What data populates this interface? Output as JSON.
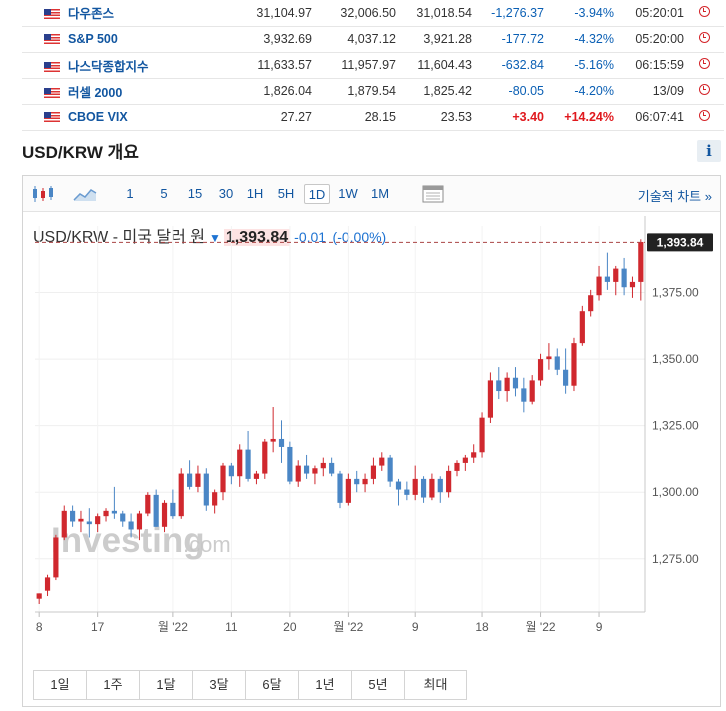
{
  "indices": [
    {
      "name": "다우존스",
      "last": "31,104.97",
      "high": "32,006.50",
      "low": "31,018.54",
      "change": "-1,276.37",
      "pct": "-3.94%",
      "time": "05:20:01",
      "dir": "neg"
    },
    {
      "name": "S&P 500",
      "last": "3,932.69",
      "high": "4,037.12",
      "low": "3,921.28",
      "change": "-177.72",
      "pct": "-4.32%",
      "time": "05:20:00",
      "dir": "neg"
    },
    {
      "name": "나스닥종합지수",
      "last": "11,633.57",
      "high": "11,957.97",
      "low": "11,604.43",
      "change": "-632.84",
      "pct": "-5.16%",
      "time": "06:15:59",
      "dir": "neg"
    },
    {
      "name": "러셀 2000",
      "last": "1,826.04",
      "high": "1,879.54",
      "low": "1,825.42",
      "change": "-80.05",
      "pct": "-4.20%",
      "time": "13/09",
      "dir": "neg"
    },
    {
      "name": "CBOE VIX",
      "last": "27.27",
      "high": "28.15",
      "low": "23.53",
      "change": "+3.40",
      "pct": "+14.24%",
      "time": "06:07:41",
      "dir": "pos"
    }
  ],
  "section": {
    "title": "USD/KRW 개요",
    "info_label": "i"
  },
  "toolbar": {
    "timeframes": [
      "1",
      "5",
      "15",
      "30",
      "1H",
      "5H",
      "1D",
      "1W",
      "1M"
    ],
    "active_timeframe": "1D",
    "tech_link": "기술적 차트 »",
    "icons": [
      "candlestick-chart-icon",
      "area-chart-icon",
      "calendar-grid-icon"
    ]
  },
  "chart_header": {
    "pair": "USD/KRW",
    "description": "- 미국 달러 원",
    "price": "1,393.84",
    "change": "-0.01",
    "change_pct": "(-0.00%)"
  },
  "watermark": {
    "brand": "Investing",
    "suffix": ".com"
  },
  "chart_data": {
    "type": "candlestick",
    "y_ticks": [
      1275,
      1300,
      1325,
      1350,
      1375
    ],
    "y_tick_labels": [
      "1,275.00",
      "1,300.00",
      "1,325.00",
      "1,350.00",
      "1,375.00"
    ],
    "ylim": [
      1255,
      1400
    ],
    "x_tick_labels": [
      "8",
      "17",
      "월 '22",
      "11",
      "20",
      "월 '22",
      "9",
      "18",
      "월 '22",
      "9"
    ],
    "x_tick_index": [
      0,
      7,
      16,
      23,
      30,
      37,
      45,
      53,
      60,
      67
    ],
    "last_price": 1393.84,
    "last_price_label": "1,393.84",
    "candles": [
      [
        1260,
        1262,
        1258,
        1262
      ],
      [
        1263,
        1269,
        1261,
        1268
      ],
      [
        1268,
        1284,
        1267,
        1283
      ],
      [
        1283,
        1295,
        1282,
        1293
      ],
      [
        1293,
        1295,
        1287,
        1289
      ],
      [
        1289,
        1293,
        1285,
        1290
      ],
      [
        1289,
        1294,
        1283,
        1288
      ],
      [
        1288,
        1292,
        1285,
        1291
      ],
      [
        1291,
        1294,
        1289,
        1293
      ],
      [
        1293,
        1302,
        1290,
        1292
      ],
      [
        1292,
        1293,
        1287,
        1289
      ],
      [
        1289,
        1292,
        1283,
        1286
      ],
      [
        1286,
        1293,
        1282,
        1292
      ],
      [
        1292,
        1300,
        1291,
        1299
      ],
      [
        1299,
        1301,
        1287,
        1287
      ],
      [
        1287,
        1297,
        1285,
        1296
      ],
      [
        1296,
        1301,
        1290,
        1291
      ],
      [
        1291,
        1309,
        1290,
        1307
      ],
      [
        1307,
        1312,
        1301,
        1302
      ],
      [
        1302,
        1310,
        1300,
        1307
      ],
      [
        1307,
        1309,
        1293,
        1295
      ],
      [
        1295,
        1301,
        1292,
        1300
      ],
      [
        1300,
        1311,
        1297,
        1310
      ],
      [
        1310,
        1311,
        1303,
        1306
      ],
      [
        1306,
        1318,
        1302,
        1316
      ],
      [
        1316,
        1323,
        1304,
        1305
      ],
      [
        1305,
        1308,
        1303,
        1307
      ],
      [
        1307,
        1320,
        1305,
        1319
      ],
      [
        1319,
        1332,
        1315,
        1320
      ],
      [
        1320,
        1327,
        1311,
        1317
      ],
      [
        1317,
        1319,
        1303,
        1304
      ],
      [
        1304,
        1312,
        1302,
        1310
      ],
      [
        1310,
        1314,
        1305,
        1307
      ],
      [
        1307,
        1310,
        1303,
        1309
      ],
      [
        1309,
        1313,
        1306,
        1311
      ],
      [
        1311,
        1313,
        1306,
        1307
      ],
      [
        1307,
        1308,
        1294,
        1296
      ],
      [
        1296,
        1307,
        1295,
        1305
      ],
      [
        1305,
        1308,
        1300,
        1303
      ],
      [
        1303,
        1307,
        1300,
        1305
      ],
      [
        1305,
        1313,
        1303,
        1310
      ],
      [
        1310,
        1315,
        1308,
        1313
      ],
      [
        1313,
        1314,
        1302,
        1304
      ],
      [
        1304,
        1305,
        1295,
        1301
      ],
      [
        1301,
        1304,
        1297,
        1299
      ],
      [
        1299,
        1310,
        1297,
        1305
      ],
      [
        1305,
        1306,
        1296,
        1298
      ],
      [
        1298,
        1307,
        1297,
        1305
      ],
      [
        1305,
        1306,
        1296,
        1300
      ],
      [
        1300,
        1310,
        1298,
        1308
      ],
      [
        1308,
        1312,
        1306,
        1311
      ],
      [
        1311,
        1314,
        1308,
        1313
      ],
      [
        1313,
        1318,
        1311,
        1315
      ],
      [
        1315,
        1330,
        1313,
        1328
      ],
      [
        1328,
        1345,
        1326,
        1342
      ],
      [
        1342,
        1347,
        1335,
        1338
      ],
      [
        1338,
        1345,
        1334,
        1343
      ],
      [
        1343,
        1347,
        1336,
        1339
      ],
      [
        1339,
        1343,
        1330,
        1334
      ],
      [
        1334,
        1344,
        1333,
        1342
      ],
      [
        1342,
        1352,
        1340,
        1350
      ],
      [
        1350,
        1356,
        1346,
        1351
      ],
      [
        1351,
        1354,
        1344,
        1346
      ],
      [
        1346,
        1354,
        1337,
        1340
      ],
      [
        1340,
        1358,
        1338,
        1356
      ],
      [
        1356,
        1370,
        1355,
        1368
      ],
      [
        1368,
        1376,
        1366,
        1374
      ],
      [
        1374,
        1385,
        1372,
        1381
      ],
      [
        1381,
        1390,
        1376,
        1379
      ],
      [
        1379,
        1385,
        1374,
        1384
      ],
      [
        1384,
        1388,
        1374,
        1377
      ],
      [
        1377,
        1381,
        1373,
        1379
      ],
      [
        1379,
        1395,
        1372,
        1394
      ]
    ]
  },
  "range_buttons": [
    "1일",
    "1주",
    "1달",
    "3달",
    "6달",
    "1년",
    "5년",
    "최대"
  ],
  "colors": {
    "up": "#d0282e",
    "down": "#4a86c5",
    "link": "#1256a0",
    "neg": "#0a5fb4",
    "pos": "#e0191e"
  }
}
